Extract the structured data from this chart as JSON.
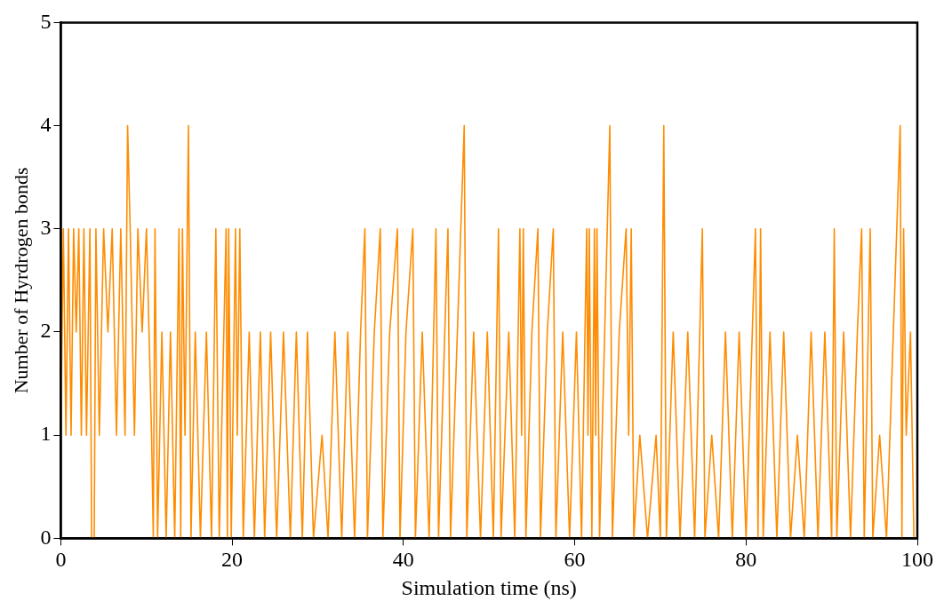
{
  "chart_data": {
    "type": "line",
    "xlabel": "Simulation time (ns)",
    "ylabel": "Number of Hyrdrogen bonds",
    "xlim": [
      0,
      100
    ],
    "xticks": [
      0,
      20,
      40,
      60,
      80,
      100
    ],
    "ylim": [
      0,
      5
    ],
    "yticks": [
      0,
      1,
      2,
      3,
      4,
      5
    ],
    "marker": "none",
    "line_style": "solid",
    "legend": false,
    "series": [
      {
        "color": "#ff8c00",
        "x": [
          0,
          0.3,
          0.6,
          0.9,
          1.2,
          1.5,
          1.8,
          2.1,
          2.4,
          2.7,
          3.0,
          3.4,
          3.6,
          3.9,
          4.1,
          4.5,
          5.0,
          5.5,
          6.0,
          6.5,
          7.0,
          7.5,
          7.8,
          8.1,
          8.6,
          9.0,
          9.5,
          10.0,
          10.6,
          10.8,
          11.0,
          11.3,
          11.8,
          12.3,
          12.8,
          13.3,
          13.8,
          14.0,
          14.2,
          14.5,
          14.9,
          15.2,
          15.7,
          16.3,
          17.0,
          17.6,
          18.1,
          18.5,
          19.3,
          19.45,
          19.6,
          19.9,
          20.4,
          20.6,
          20.9,
          21.3,
          22.0,
          22.6,
          23.3,
          23.8,
          24.5,
          25.2,
          26.0,
          26.8,
          27.5,
          28.2,
          28.8,
          29.5,
          30.5,
          31.2,
          32.0,
          32.8,
          33.5,
          34.3,
          35.0,
          35.5,
          35.8,
          36.6,
          37.3,
          37.6,
          38.4,
          39.3,
          39.6,
          40.3,
          41.1,
          41.4,
          42.2,
          43.0,
          43.8,
          44.1,
          45.2,
          45.5,
          46.3,
          47.1,
          47.4,
          48.2,
          49.0,
          49.8,
          50.5,
          51.1,
          51.4,
          52.3,
          53.0,
          53.6,
          53.8,
          54.0,
          54.3,
          55.0,
          55.7,
          56.0,
          56.8,
          57.5,
          57.8,
          58.6,
          59.4,
          60.2,
          60.8,
          61.4,
          61.55,
          61.7,
          62.0,
          62.3,
          62.45,
          62.6,
          62.9,
          63.5,
          64.1,
          64.4,
          65.2,
          66.0,
          66.3,
          66.6,
          66.9,
          67.6,
          68.5,
          69.5,
          70.0,
          70.4,
          70.7,
          71.5,
          72.3,
          73.2,
          74.0,
          74.9,
          75.2,
          76.0,
          76.8,
          77.6,
          78.4,
          79.2,
          80.0,
          81.1,
          81.4,
          81.7,
          82.0,
          82.8,
          83.6,
          84.4,
          85.2,
          86.0,
          86.8,
          87.6,
          88.4,
          89.2,
          90.0,
          90.3,
          90.6,
          91.4,
          92.2,
          93.0,
          93.5,
          93.8,
          94.5,
          94.8,
          95.6,
          96.4,
          97.2,
          98.0,
          98.2,
          98.4,
          98.7,
          99.2,
          99.6
        ],
        "values": [
          1,
          3,
          1,
          3,
          1,
          3,
          2,
          3,
          1,
          3,
          1,
          3,
          0,
          0,
          3,
          1,
          3,
          2,
          3,
          1,
          3,
          1,
          4,
          3,
          1,
          3,
          2,
          3,
          1,
          0,
          3,
          0,
          2,
          0,
          2,
          0,
          3,
          0,
          3,
          1,
          4,
          0,
          2,
          0,
          2,
          0,
          3,
          0,
          3,
          0,
          3,
          0,
          3,
          1,
          3,
          0,
          2,
          0,
          2,
          0,
          2,
          0,
          2,
          0,
          2,
          0,
          2,
          0,
          1,
          0,
          2,
          0,
          2,
          0,
          2,
          3,
          0,
          2,
          3,
          0,
          2,
          3,
          0,
          2,
          3,
          0,
          2,
          0,
          3,
          0,
          3,
          0,
          2,
          4,
          0,
          2,
          0,
          2,
          0,
          3,
          0,
          2,
          0,
          3,
          1,
          3,
          0,
          2,
          3,
          0,
          2,
          3,
          0,
          2,
          0,
          2,
          0,
          3,
          1,
          3,
          0,
          3,
          1,
          3,
          0,
          2,
          4,
          0,
          2,
          3,
          1,
          3,
          0,
          1,
          0,
          1,
          0,
          4,
          0,
          2,
          0,
          2,
          0,
          3,
          0,
          1,
          0,
          2,
          0,
          2,
          0,
          3,
          0,
          3,
          0,
          2,
          0,
          2,
          0,
          1,
          0,
          2,
          0,
          2,
          0,
          3,
          0,
          2,
          0,
          2,
          3,
          0,
          3,
          0,
          1,
          0,
          2,
          4,
          0,
          3,
          1,
          2,
          0
        ]
      }
    ]
  }
}
